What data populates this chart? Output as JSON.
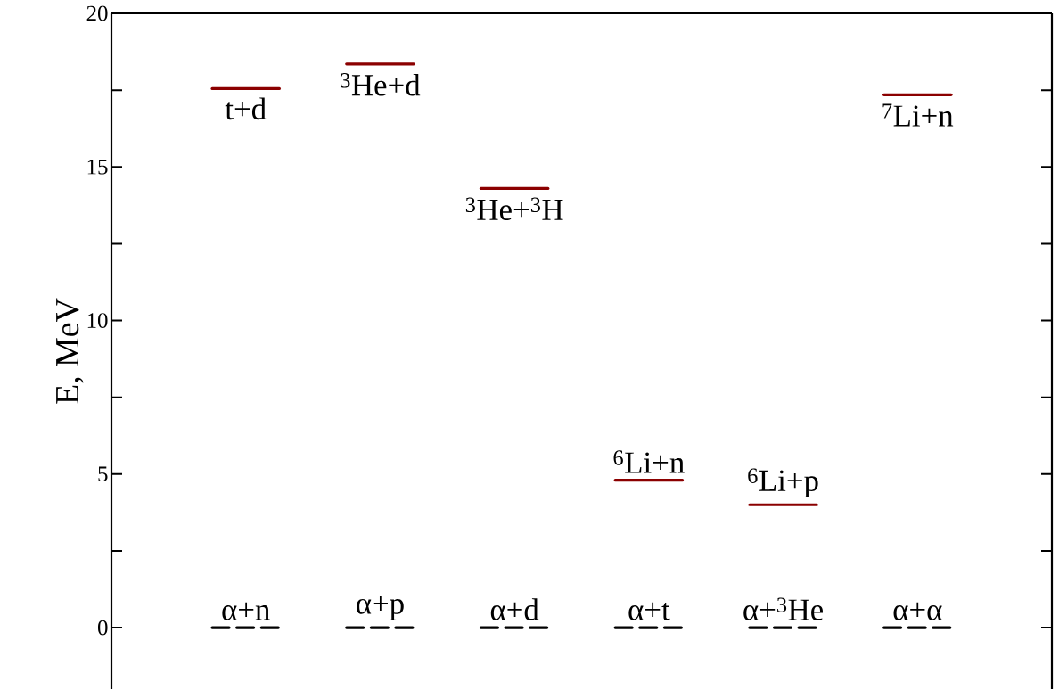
{
  "chart_data": {
    "type": "line",
    "ylabel": "E, MeV",
    "categories": [
      null,
      null,
      null,
      null,
      null,
      null,
      null,
      null,
      null,
      null,
      null,
      null,
      null,
      null
    ],
    "ylim": [
      -2,
      20
    ],
    "yticks": [
      0,
      5,
      10,
      15,
      20
    ],
    "grid": false,
    "series": [
      {
        "name": "t+d",
        "color": "#8b0000",
        "values": [
          null,
          17.55,
          17.55,
          null,
          null,
          null,
          null,
          null,
          null,
          null,
          null,
          null,
          null,
          null
        ]
      },
      {
        "name": "$^{3}$He+d",
        "color": "#8b0000",
        "values": [
          null,
          null,
          null,
          18.35,
          18.35,
          null,
          null,
          null,
          null,
          null,
          null,
          null,
          null,
          null
        ]
      },
      {
        "name": "$^{3}$He+$^{3}$H",
        "color": "#8b0000",
        "values": [
          null,
          null,
          null,
          null,
          null,
          14.3,
          14.3,
          null,
          null,
          null,
          null,
          null,
          null,
          null
        ]
      },
      {
        "name": "$^{6}$Li+n",
        "color": "#8b0000",
        "values": [
          null,
          null,
          null,
          null,
          null,
          null,
          null,
          4.8,
          4.8,
          null,
          null,
          null,
          null,
          null
        ]
      },
      {
        "name": "$^{6}$Li+p",
        "color": "#8b0000",
        "values": [
          null,
          null,
          null,
          null,
          null,
          null,
          null,
          null,
          null,
          4.0,
          4.0,
          null,
          null,
          null
        ]
      },
      {
        "name": "$^{7}$Li+n",
        "color": "#8b0000",
        "values": [
          null,
          null,
          null,
          null,
          null,
          null,
          null,
          null,
          null,
          null,
          null,
          17.35,
          17.35,
          null
        ]
      },
      {
        "name": "α+n",
        "color": "#000000",
        "line_style": "dashed",
        "values": [
          null,
          0,
          0,
          null,
          null,
          null,
          null,
          null,
          null,
          null,
          null,
          null,
          null,
          null
        ]
      },
      {
        "name": "α+p",
        "color": "#000000",
        "line_style": "dashed",
        "values": [
          null,
          null,
          null,
          0,
          0,
          null,
          null,
          null,
          null,
          null,
          null,
          null,
          null,
          null
        ]
      },
      {
        "name": "α+d",
        "color": "#000000",
        "line_style": "dashed",
        "values": [
          null,
          null,
          null,
          null,
          null,
          0,
          0,
          null,
          null,
          null,
          null,
          null,
          null,
          null
        ]
      },
      {
        "name": "α+t",
        "color": "#000000",
        "line_style": "dashed",
        "values": [
          null,
          null,
          null,
          null,
          null,
          null,
          null,
          0,
          0,
          null,
          null,
          null,
          null,
          null
        ]
      },
      {
        "name": "α+$^{3}$He",
        "color": "#000000",
        "line_style": "dashed",
        "values": [
          null,
          null,
          null,
          null,
          null,
          null,
          null,
          null,
          null,
          0,
          0,
          null,
          null,
          null
        ]
      },
      {
        "name": "α+α",
        "color": "#000000",
        "line_style": "dashed",
        "values": [
          null,
          null,
          null,
          null,
          null,
          null,
          null,
          null,
          null,
          null,
          null,
          0,
          0,
          null
        ]
      }
    ]
  }
}
